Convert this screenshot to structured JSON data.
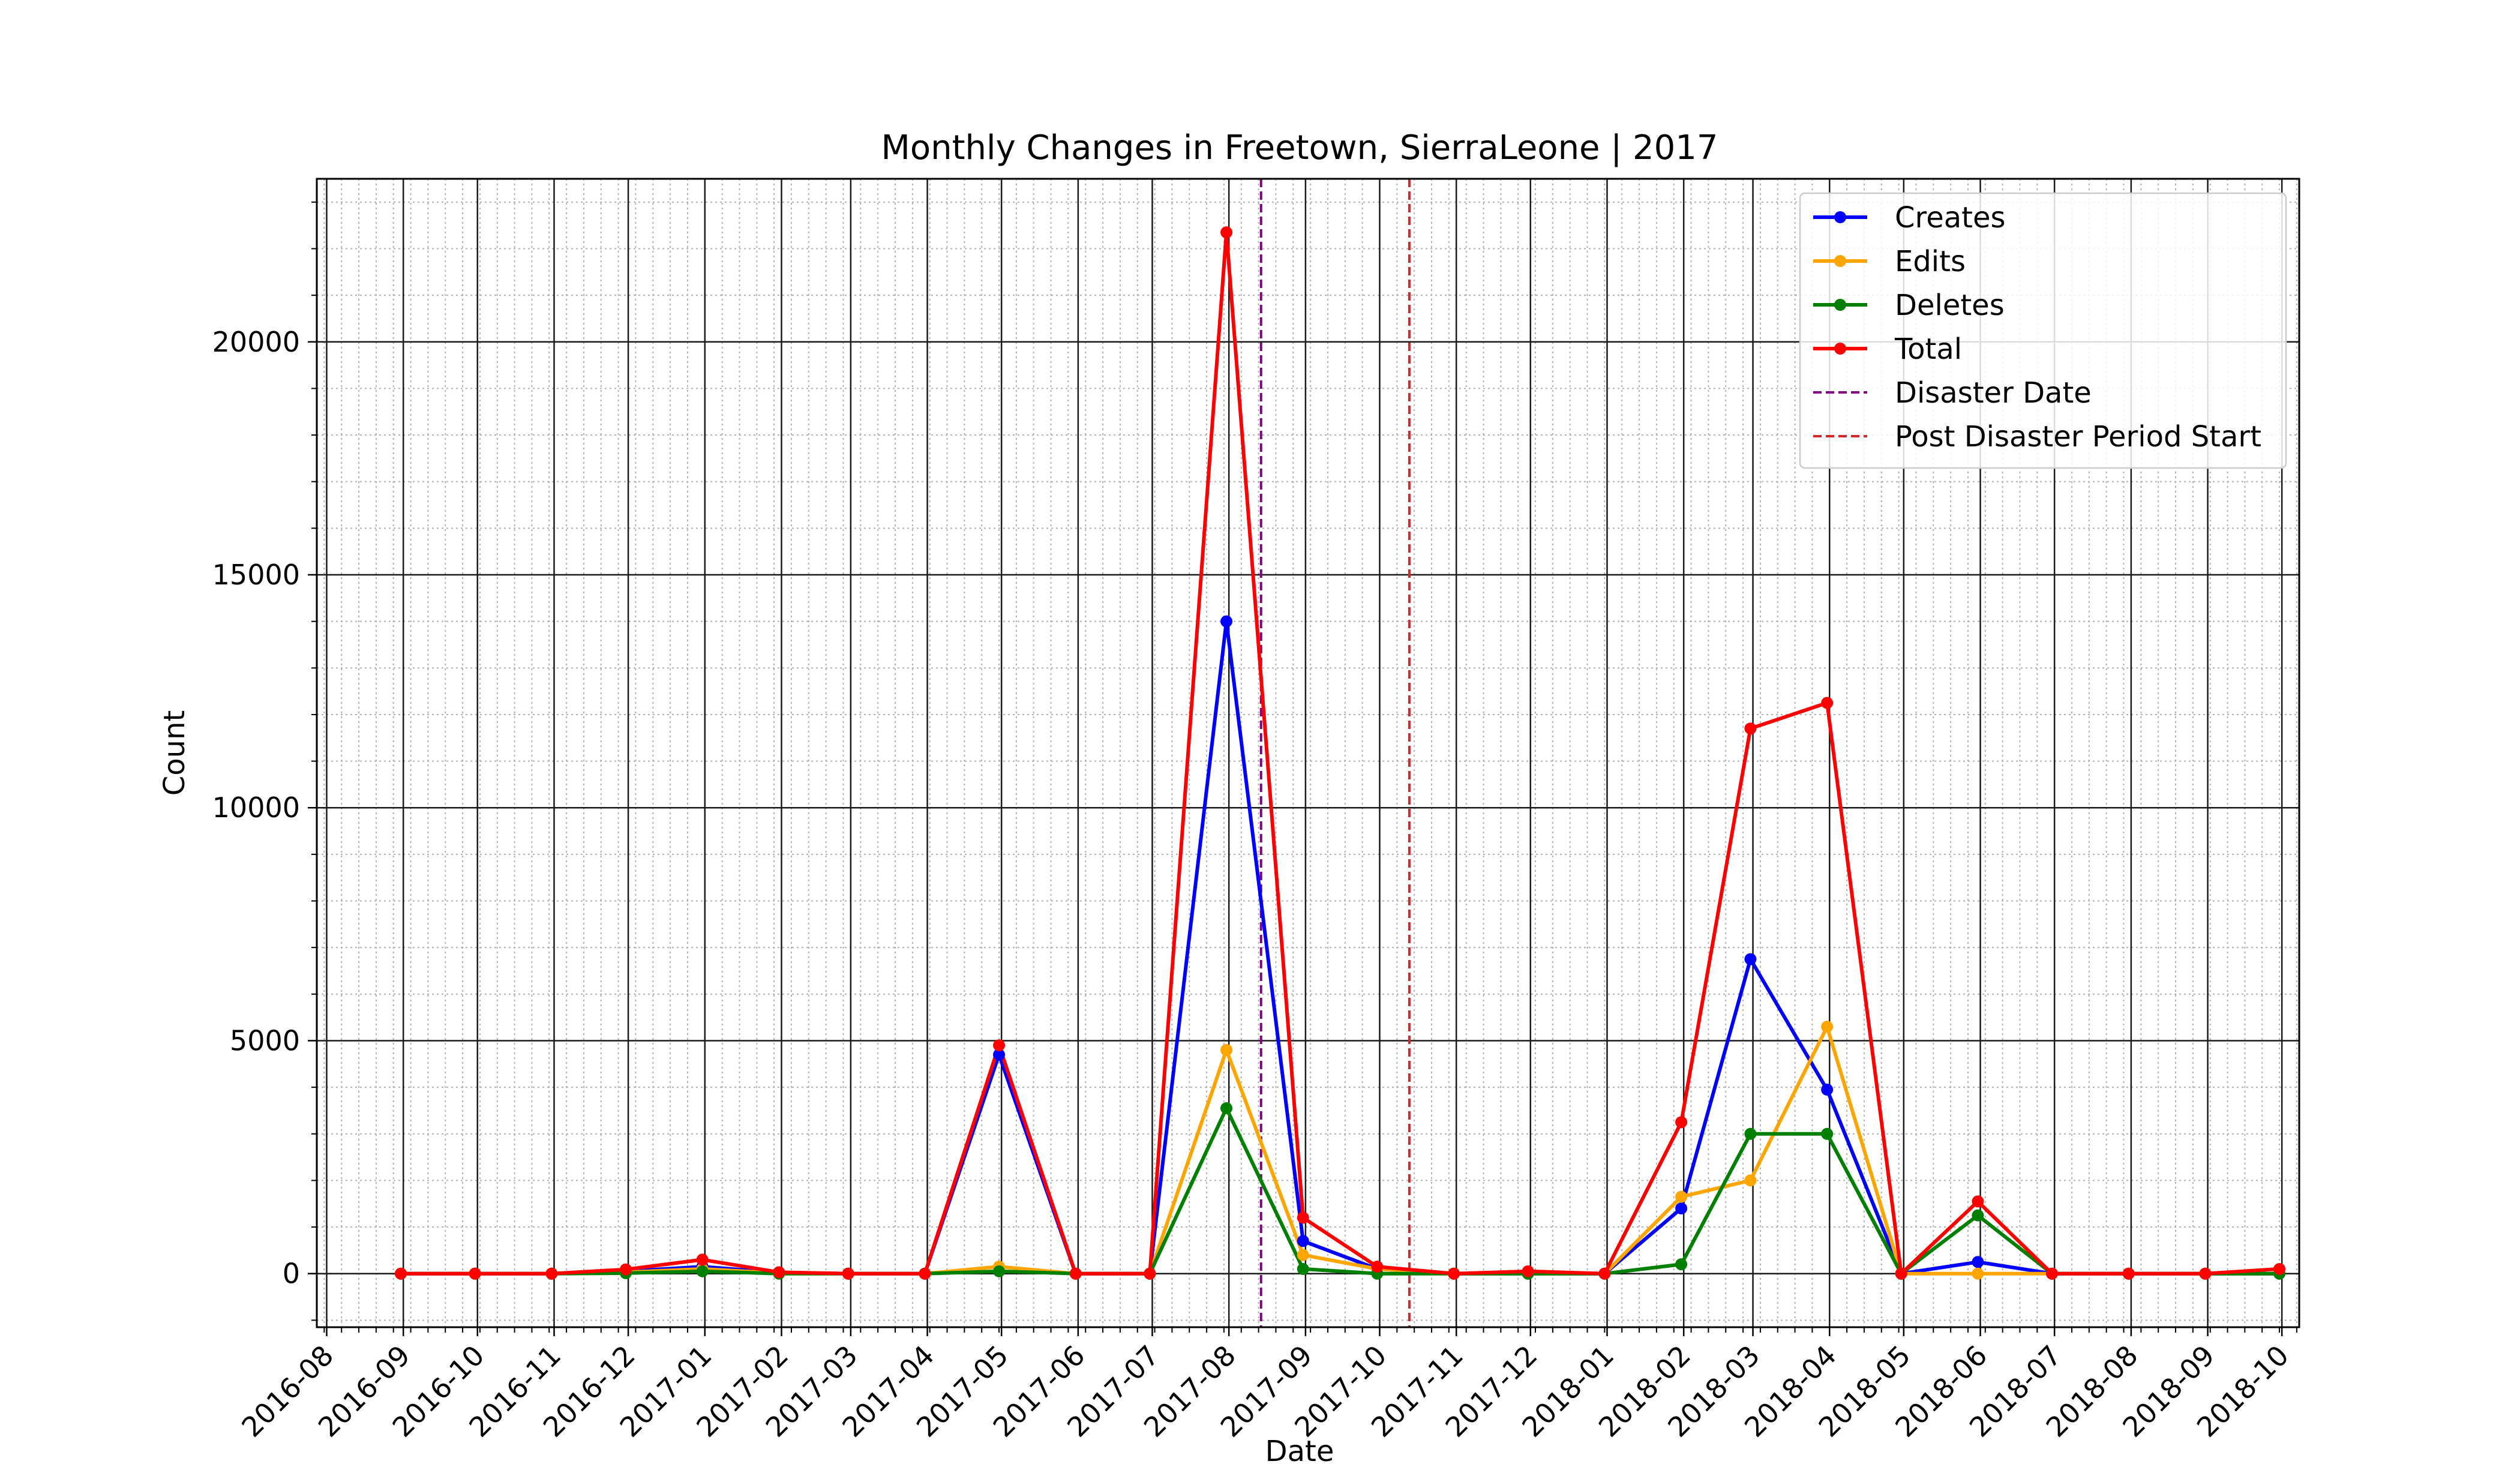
{
  "chart_data": {
    "type": "line",
    "title": "Monthly Changes in Freetown, SierraLeone | 2017",
    "xlabel": "Date",
    "ylabel": "Count",
    "x_ticks": [
      "2016-08",
      "2016-09",
      "2016-10",
      "2016-11",
      "2016-12",
      "2017-01",
      "2017-02",
      "2017-03",
      "2017-04",
      "2017-05",
      "2017-06",
      "2017-07",
      "2017-08",
      "2017-09",
      "2017-10",
      "2017-11",
      "2017-12",
      "2018-01",
      "2018-02",
      "2018-03",
      "2018-04",
      "2018-05",
      "2018-06",
      "2018-07",
      "2018-08",
      "2018-09",
      "2018-10"
    ],
    "y_ticks": [
      0,
      5000,
      10000,
      15000,
      20000
    ],
    "xlim": [
      "2016-07-28",
      "2018-10-08"
    ],
    "ylim": [
      -1150,
      23500
    ],
    "grid": true,
    "legend_position": "top-right",
    "x": [
      "2016-08-31",
      "2016-09-30",
      "2016-10-31",
      "2016-11-30",
      "2016-12-31",
      "2017-01-31",
      "2017-02-28",
      "2017-03-31",
      "2017-04-30",
      "2017-05-31",
      "2017-06-30",
      "2017-07-31",
      "2017-08-31",
      "2017-09-30",
      "2017-10-31",
      "2017-11-30",
      "2017-12-31",
      "2018-01-31",
      "2018-02-28",
      "2018-03-31",
      "2018-04-30",
      "2018-05-31",
      "2018-06-30",
      "2018-07-31",
      "2018-08-31",
      "2018-09-30"
    ],
    "series": [
      {
        "name": "Creates",
        "color": "#0000ff",
        "values": [
          0,
          0,
          0,
          50,
          150,
          20,
          0,
          0,
          4700,
          0,
          0,
          14000,
          700,
          100,
          0,
          0,
          0,
          1400,
          6750,
          3950,
          0,
          250,
          0,
          0,
          0,
          0
        ]
      },
      {
        "name": "Edits",
        "color": "#ffa500",
        "values": [
          0,
          0,
          0,
          30,
          100,
          10,
          0,
          0,
          150,
          0,
          0,
          4800,
          400,
          100,
          0,
          0,
          0,
          1650,
          2000,
          5300,
          0,
          0,
          0,
          0,
          0,
          0
        ]
      },
      {
        "name": "Deletes",
        "color": "#008000",
        "values": [
          0,
          0,
          0,
          10,
          50,
          0,
          0,
          0,
          50,
          0,
          0,
          3550,
          100,
          0,
          0,
          0,
          0,
          200,
          3000,
          3000,
          0,
          1250,
          0,
          0,
          0,
          0
        ]
      },
      {
        "name": "Total",
        "color": "#ff0000",
        "values": [
          0,
          0,
          0,
          90,
          300,
          30,
          0,
          0,
          4900,
          0,
          0,
          22350,
          1200,
          150,
          0,
          50,
          0,
          3250,
          11700,
          12250,
          0,
          1550,
          0,
          0,
          0,
          100
        ]
      }
    ],
    "vlines": [
      {
        "name": "Disaster Date",
        "color": "#800080",
        "x": "2017-08-14"
      },
      {
        "name": "Post Disaster Period Start",
        "color": "#d62728",
        "x": "2017-10-13"
      }
    ]
  }
}
